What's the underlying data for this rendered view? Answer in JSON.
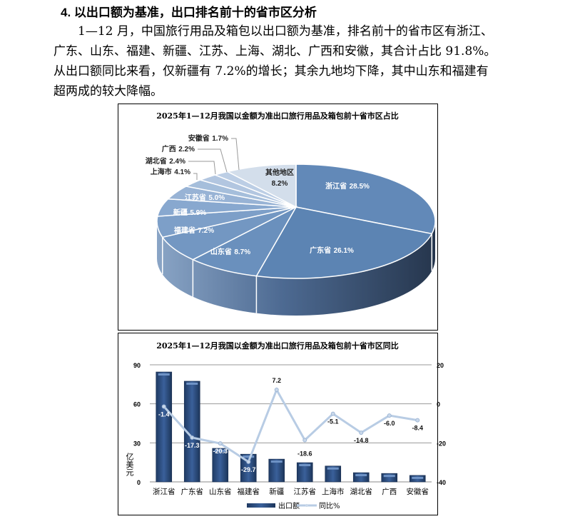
{
  "heading": "4. 以出口额为基准，出口排名前十的省市区分析",
  "paragraph_lines": [
    "1—12 月，中国旅行用品及箱包以出口额为基准，排名前十的省市区有浙江、",
    "广东、山东、福建、新疆、江苏、上海、湖北、广西和安徽，其合计占比 91.8%。",
    "从出口额同比来看，仅新疆有 7.2%的增长；其余九地均下降，其中山东和福建有",
    "超两成的较大降幅。"
  ],
  "chart_data": [
    {
      "type": "pie",
      "title": "2025年1—12月我国以金额为准出口旅行用品及箱包前十省市区占比",
      "slices": [
        {
          "label": "浙江省",
          "value": 28.5,
          "text": "28.5%",
          "color": "#6289b8"
        },
        {
          "label": "广东省",
          "value": 26.1,
          "text": "26.1%",
          "color": "#5c84b3"
        },
        {
          "label": "山东省",
          "value": 8.7,
          "text": "8.7%",
          "color": "#6a90bd"
        },
        {
          "label": "福建省",
          "value": 7.2,
          "text": "7.2%",
          "color": "#7397c2"
        },
        {
          "label": "新疆",
          "value": 5.9,
          "text": "5.9%",
          "color": "#7d9fc8"
        },
        {
          "label": "江苏省",
          "value": 5.0,
          "text": "5.0%",
          "color": "#88a8cf"
        },
        {
          "label": "上海市",
          "value": 4.1,
          "text": "4.1%",
          "color": "#98b3d5"
        },
        {
          "label": "湖北省",
          "value": 2.4,
          "text": "2.4%",
          "color": "#a5bedb"
        },
        {
          "label": "广西",
          "value": 2.2,
          "text": "2.2%",
          "color": "#b2c6e0"
        },
        {
          "label": "安徽省",
          "value": 1.7,
          "text": "1.7%",
          "color": "#bccee5"
        },
        {
          "label": "其他地区",
          "value": 8.2,
          "text": "8.2%",
          "color": "#d3deeb"
        }
      ]
    },
    {
      "type": "bar",
      "title": "2025年1—12月我国以金额为准出口旅行用品及箱包前十省市区同比",
      "categories": [
        "浙江省",
        "广东省",
        "山东省",
        "福建省",
        "新疆",
        "江苏省",
        "上海市",
        "湖北省",
        "广西",
        "安徽省"
      ],
      "ylabel": "亿美元",
      "ylim": [
        0,
        90
      ],
      "yticks": [
        "90",
        "60",
        "30",
        "0"
      ],
      "y2lim": [
        -40,
        20
      ],
      "y2ticks": [
        "20",
        "0",
        "-20",
        "-40"
      ],
      "series": [
        {
          "name": "出口额",
          "type": "bar",
          "color": "#2f5283",
          "values": [
            84.5,
            77.4,
            25.8,
            21.3,
            17.5,
            14.8,
            12.2,
            7.1,
            6.5,
            5.0
          ]
        },
        {
          "name": "同比%",
          "type": "line",
          "axis": "right",
          "color": "#b8cce4",
          "values": [
            -1.4,
            -17.3,
            -20.3,
            -29.7,
            7.2,
            -18.6,
            -5.1,
            -14.8,
            -6.0,
            -8.4
          ],
          "labels": [
            "-1.4",
            "-17.3",
            "-20.3",
            "-29.7",
            "7.2",
            "-18.6",
            "-5.1",
            "-14.8",
            "-6.0",
            "-8.4"
          ]
        }
      ],
      "legend": "bottom"
    }
  ]
}
